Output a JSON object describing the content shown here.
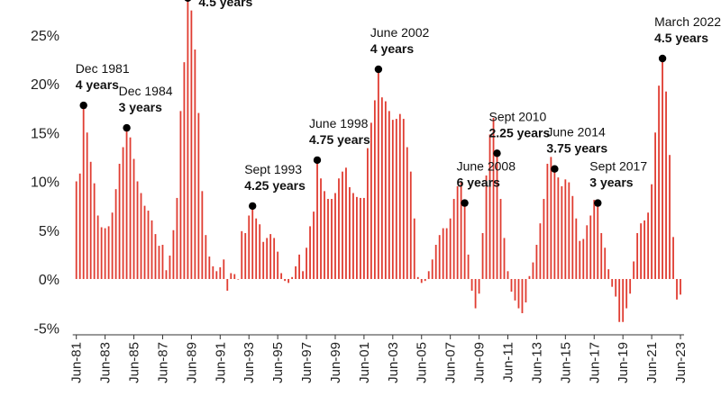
{
  "chart_data": {
    "type": "bar",
    "title": "",
    "xlabel": "",
    "ylabel": "",
    "ylim": [
      -5.5,
      29
    ],
    "yticks": [
      -5,
      0,
      5,
      10,
      15,
      20,
      25
    ],
    "ytick_labels": [
      "-5%",
      "0%",
      "5%",
      "10%",
      "15%",
      "20%",
      "25%"
    ],
    "xtick_labels": [
      "Jun-81",
      "Jun-83",
      "Jun-85",
      "Jun-87",
      "Jun-89",
      "Jun-91",
      "Jun-93",
      "Jun-95",
      "Jun-97",
      "Jun-99",
      "Jun-01",
      "Jun-03",
      "Jun-05",
      "Jun-07",
      "Jun-09",
      "Jun-11",
      "Jun-13",
      "Jun-15",
      "Jun-17",
      "Jun-19",
      "Jun-21",
      "Jun-23"
    ],
    "bar_color": "#e03c31",
    "start_quarter": "Jun-81",
    "values": [
      10,
      10.8,
      17.5,
      15,
      12,
      9.8,
      6.5,
      5.3,
      5.2,
      5.4,
      6.8,
      9.2,
      11.8,
      13.5,
      15.2,
      14.5,
      12.3,
      10,
      8.8,
      7.5,
      7,
      6,
      4.6,
      3.4,
      3.5,
      0.9,
      2.4,
      5,
      8.3,
      17.2,
      22.2,
      28.5,
      27.5,
      23.5,
      17,
      9,
      4.5,
      2.3,
      1.3,
      0.8,
      1.2,
      2,
      -1.2,
      0.6,
      0.5,
      0,
      4.9,
      4.7,
      6.5,
      7.2,
      6.2,
      5.6,
      3.8,
      4.2,
      4.6,
      4.2,
      2.8,
      0.6,
      -0.2,
      -0.4,
      0.2,
      1.3,
      2.5,
      0.8,
      3.2,
      5.4,
      6.9,
      11.9,
      10.3,
      9,
      8.2,
      8.2,
      8.8,
      10.3,
      11,
      11.4,
      9.4,
      8.8,
      8.4,
      8.3,
      8.3,
      13.4,
      16,
      18.3,
      21.2,
      18.6,
      18.2,
      17.2,
      16.3,
      16.4,
      16.9,
      16.4,
      13.5,
      11,
      6.2,
      0.2,
      -0.4,
      -0.2,
      0.8,
      2,
      3.5,
      4.5,
      5.2,
      5.2,
      6.2,
      8.2,
      9.5,
      10,
      7.5,
      2.5,
      -1.2,
      -3,
      -1.5,
      4.7,
      10.6,
      14.8,
      16.5,
      12.6,
      8.2,
      4.2,
      0.8,
      -1.3,
      -2.2,
      -3,
      -3.5,
      -2.4,
      0.3,
      1.7,
      3.5,
      5.7,
      8.2,
      11.8,
      12.5,
      11,
      10.4,
      9.5,
      10.2,
      9.9,
      8.5,
      6.2,
      3.9,
      4.1,
      5.5,
      6.5,
      8.1,
      7.5,
      4.7,
      3.2,
      1,
      -0.8,
      -1.8,
      -4.4,
      -4.4,
      -3,
      -1.5,
      1.8,
      4.7,
      5.7,
      6,
      6.8,
      9.7,
      15,
      19.8,
      22.3,
      19.2,
      12.7,
      4.3,
      -2.1,
      -1.6
    ],
    "annotations": [
      {
        "index": 2,
        "label": "Dec 1981",
        "duration": "4 years"
      },
      {
        "index": 14,
        "label": "Dec 1984",
        "duration": "3 years"
      },
      {
        "index": 31,
        "label": "",
        "duration": "4.5 years"
      },
      {
        "index": 49,
        "label": "Sept 1993",
        "duration": "4.25 years"
      },
      {
        "index": 67,
        "label": "June 1998",
        "duration": "4.75 years"
      },
      {
        "index": 84,
        "label": "June 2002",
        "duration": "4 years"
      },
      {
        "index": 108,
        "label": "June 2008",
        "duration": "6 years"
      },
      {
        "index": 117,
        "label": "Sept 2010",
        "duration": "2.25 years"
      },
      {
        "index": 133,
        "label": "June 2014",
        "duration": "3.75 years"
      },
      {
        "index": 145,
        "label": "Sept 2017",
        "duration": "3 years"
      },
      {
        "index": 163,
        "label": "March 2022",
        "duration": "4.5 years"
      }
    ]
  }
}
